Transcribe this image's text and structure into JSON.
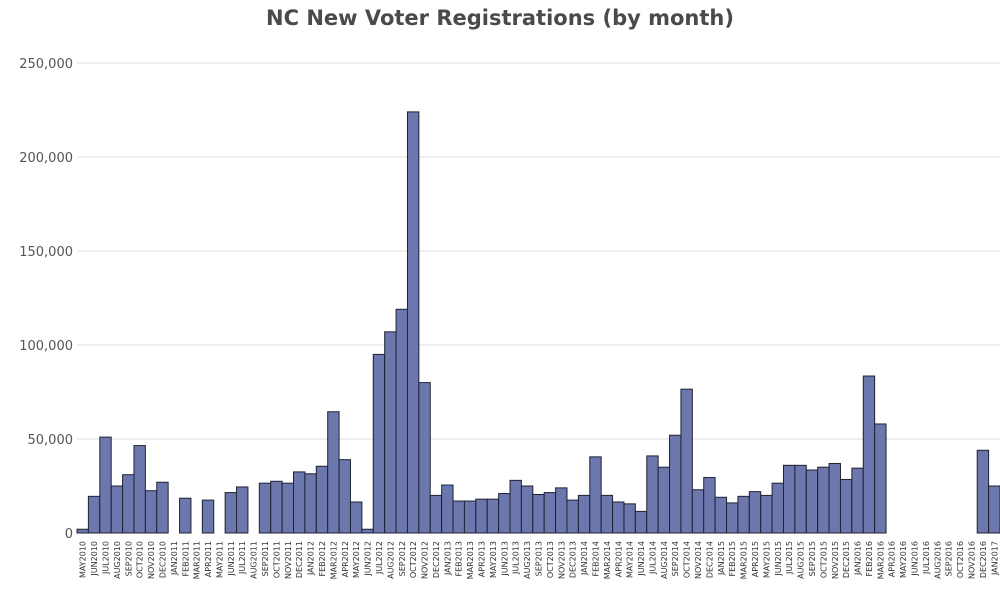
{
  "chart_data": {
    "type": "bar",
    "title": "NC New Voter Registrations (by month)",
    "xlabel": "",
    "ylabel": "",
    "ylim": [
      0,
      250000
    ],
    "y_ticks": [
      0,
      50000,
      100000,
      150000,
      200000,
      250000
    ],
    "y_tick_labels": [
      "0",
      "50,000",
      "100,000",
      "150,000",
      "200,000",
      "250,000"
    ],
    "grid": "horizontal",
    "bar_color": "#6c77ad",
    "bar_outline_color": "#1f2233",
    "categories": [
      "MAY2010",
      "JUN2010",
      "JUL2010",
      "AUG2010",
      "SEP2010",
      "OCT2010",
      "NOV2010",
      "DEC2010",
      "JAN2011",
      "FEB2011",
      "MAR2011",
      "APR2011",
      "MAY2011",
      "JUN2011",
      "JUL2011",
      "AUG2011",
      "SEP2011",
      "OCT2011",
      "NOV2011",
      "DEC2011",
      "JAN2012",
      "FEB2012",
      "MAR2012",
      "APR2012",
      "MAY2012",
      "JUN2012",
      "JUL2012",
      "AUG2012",
      "SEP2012",
      "OCT2012",
      "NOV2012",
      "DEC2012",
      "JAN2013",
      "FEB2013",
      "MAR2013",
      "APR2013",
      "MAY2013",
      "JUN2013",
      "JUL2013",
      "AUG2013",
      "SEP2013",
      "OCT2013",
      "NOV2013",
      "DEC2013",
      "JAN2014",
      "FEB2014",
      "MAR2014",
      "APR2014",
      "MAY2014",
      "JUN2014",
      "JUL2014",
      "AUG2014",
      "SEP2014",
      "OCT2014",
      "NOV2014",
      "DEC2014",
      "JAN2015",
      "FEB2015",
      "MAR2015",
      "APR2015",
      "MAY2015",
      "JUN2015",
      "JUL2015",
      "AUG2015",
      "SEP2015",
      "OCT2015",
      "NOV2015",
      "DEC2015",
      "JAN2016",
      "FEB2016",
      "MAR2016",
      "APR2016",
      "MAY2016",
      "JUN2016",
      "JUL2016",
      "AUG2016",
      "SEP2016",
      "OCT2016",
      "NOV2016",
      "DEC2016",
      "JAN2017"
    ],
    "values": [
      2000,
      19500,
      51000,
      25000,
      31000,
      46500,
      22500,
      27000,
      0,
      18500,
      0,
      17500,
      0,
      21500,
      24500,
      0,
      26500,
      27500,
      26500,
      32500,
      31500,
      35500,
      64500,
      39000,
      16500,
      2000,
      95000,
      107000,
      119000,
      224000,
      80000,
      20000,
      25500,
      17000,
      17000,
      18000,
      18000,
      21000,
      28000,
      25000,
      20500,
      21500,
      24000,
      17500,
      20000,
      40500,
      20000,
      16500,
      15500,
      11500,
      41000,
      35000,
      52000,
      76500,
      23000,
      29500,
      19000,
      16000,
      19500,
      22000,
      20000,
      26500,
      36000,
      36000,
      33500,
      35000,
      37000,
      28500,
      34500,
      83500,
      58000,
      0,
      0,
      0,
      0,
      0,
      0,
      0,
      0,
      44000,
      25000
    ]
  }
}
